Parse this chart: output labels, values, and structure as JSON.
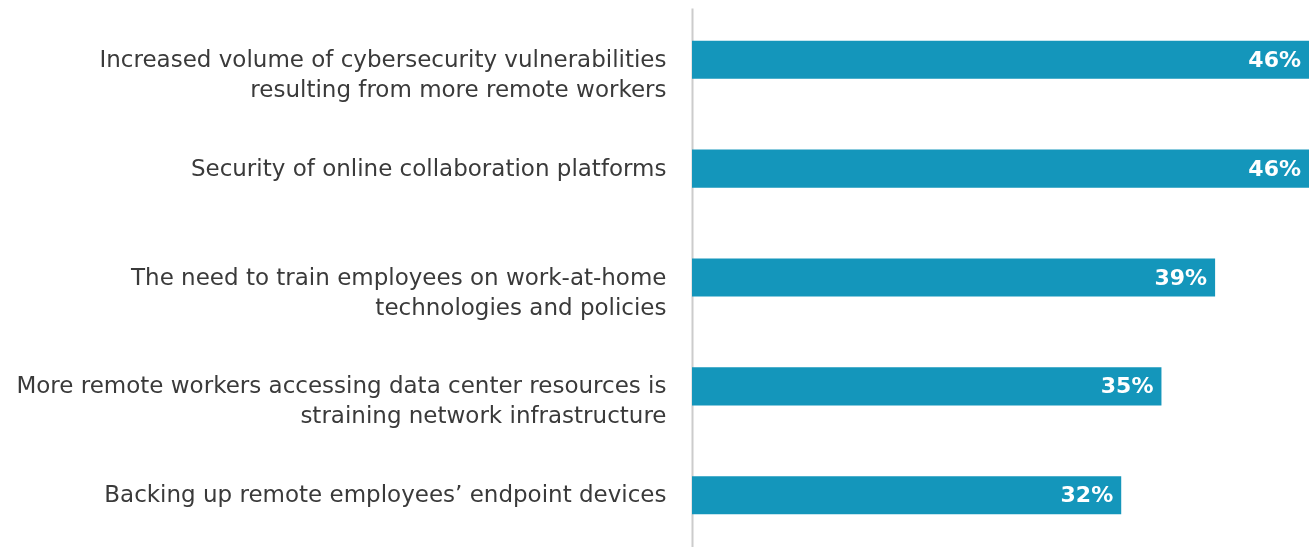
{
  "chart_data": {
    "type": "bar",
    "orientation": "horizontal",
    "categories": [
      "Increased volume of cybersecurity vulnerabilities resulting from more remote workers",
      "Security of online collaboration platforms",
      "The need to train employees on work-at-home technologies and policies",
      "More remote workers accessing data center resources is straining network infrastructure",
      "Backing up remote employees’ endpoint devices"
    ],
    "values": [
      46,
      46,
      39,
      35,
      32
    ],
    "value_labels": [
      "46%",
      "46%",
      "39%",
      "35%",
      "32%"
    ],
    "color": "#1496bb"
  }
}
